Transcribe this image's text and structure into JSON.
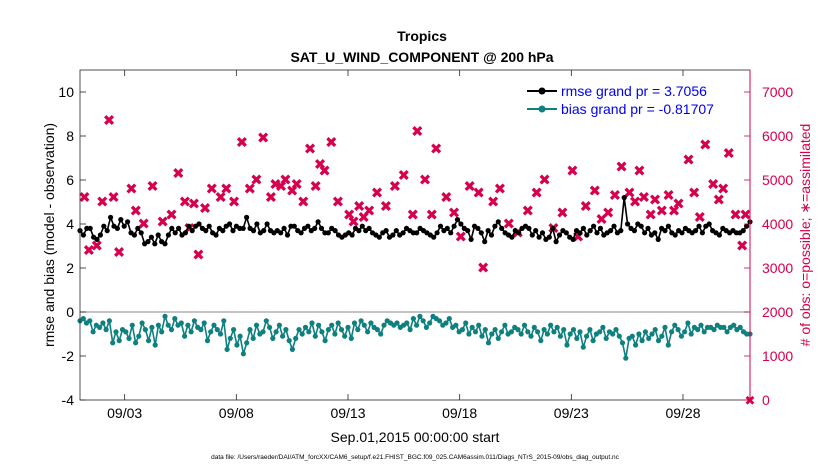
{
  "chart_data": {
    "type": "line",
    "title": "Tropics",
    "subtitle": "SAT_U_WIND_COMPONENT @ 200 hPa",
    "xlabel": "Sep.01,2015 00:00:00 start",
    "ylabel": "rmse and bias (model - observation)",
    "y2label": "# of obs: o=possible; ∗=assimilated",
    "footnote": "data file: /Users/raeder/DAI/ATM_forcXX/CAM6_setup/f.e21.FHIST_BGC.f09_025.CAM6assim.011/Diags_NTrS_2015-09/obs_diag_output.nc",
    "xlim": [
      1,
      31
    ],
    "xticks": [
      3,
      8,
      13,
      18,
      23,
      28
    ],
    "xtick_labels": [
      "09/03",
      "09/08",
      "09/13",
      "09/18",
      "09/23",
      "09/28"
    ],
    "ylim": [
      -4,
      11
    ],
    "yticks": [
      -4,
      -2,
      0,
      2,
      4,
      6,
      8,
      10
    ],
    "ytick_labels": [
      "-4",
      "-2",
      "0",
      "2",
      "4",
      "6",
      "8",
      "10"
    ],
    "y2lim": [
      0,
      7500
    ],
    "y2ticks": [
      0,
      1000,
      2000,
      3000,
      4000,
      5000,
      6000,
      7000
    ],
    "y2tick_labels": [
      "0",
      "1000",
      "2000",
      "3000",
      "4000",
      "5000",
      "6000",
      "7000"
    ],
    "legend_location": "top-right",
    "colors": {
      "rmse": "#000000",
      "bias": "#0e8080",
      "obs": "#d6004e",
      "axis_right": "#d6004e",
      "legend_text": "#0000ee",
      "zero_line": "#a0a0a0"
    },
    "series": [
      {
        "name": "rmse grand pr = 3.7056",
        "axis": "left",
        "values": [
          3.7,
          3.5,
          3.8,
          3.8,
          3.4,
          3.3,
          3.5,
          3.9,
          3.7,
          4.3,
          3.9,
          3.8,
          4.2,
          3.9,
          4.1,
          3.6,
          3.5,
          3.8,
          3.6,
          3.1,
          3.2,
          3.4,
          3.1,
          3.5,
          3.2,
          3.1,
          3.5,
          3.8,
          3.6,
          3.8,
          3.5,
          3.6,
          3.9,
          3.7,
          3.9,
          4.0,
          3.8,
          3.7,
          3.9,
          3.6,
          3.5,
          3.8,
          3.7,
          3.9,
          4.0,
          3.7,
          3.9,
          3.8,
          3.8,
          4.3,
          3.8,
          3.7,
          4.0,
          3.6,
          3.7,
          4.0,
          3.7,
          3.6,
          3.7,
          3.6,
          3.8,
          3.5,
          3.9,
          3.9,
          3.7,
          3.6,
          3.8,
          3.9,
          3.7,
          3.8,
          4.1,
          3.8,
          3.6,
          3.6,
          3.8,
          3.7,
          3.5,
          3.4,
          3.5,
          3.6,
          3.5,
          3.8,
          3.7,
          3.9,
          3.7,
          3.8,
          3.6,
          3.5,
          3.4,
          3.6,
          3.7,
          3.4,
          3.5,
          3.7,
          3.5,
          3.6,
          3.8,
          3.7,
          3.6,
          3.6,
          3.8,
          3.7,
          3.6,
          3.5,
          3.4,
          3.6,
          3.9,
          3.7,
          3.8,
          3.6,
          3.9,
          4.2,
          4.0,
          3.8,
          3.7,
          3.3,
          3.9,
          3.8,
          3.6,
          3.2,
          3.7,
          3.5,
          3.9,
          4.1,
          3.8,
          3.6,
          3.5,
          3.4,
          3.7,
          3.6,
          3.8,
          3.9,
          3.8,
          3.5,
          3.7,
          3.4,
          3.6,
          3.3,
          3.4,
          3.8,
          3.2,
          3.5,
          3.7,
          3.6,
          3.4,
          3.3,
          3.7,
          3.6,
          3.8,
          3.5,
          3.7,
          3.9,
          3.6,
          3.8,
          3.5,
          3.6,
          3.7,
          3.9,
          3.6,
          3.7,
          5.2,
          4.0,
          3.8,
          3.7,
          4.0,
          3.9,
          3.6,
          3.8,
          3.5,
          3.6,
          3.3,
          3.8,
          3.7,
          3.9,
          3.6,
          3.5,
          3.7,
          3.6,
          3.8,
          3.7,
          3.6,
          3.7,
          3.9,
          3.6,
          3.9,
          4.0,
          3.7,
          3.6,
          3.5,
          3.8,
          3.7,
          3.6,
          3.7,
          3.6,
          3.6,
          3.7,
          3.9,
          4.1
        ]
      },
      {
        "name": "bias grand pr = -0.81707",
        "axis": "left",
        "values": [
          -0.4,
          -0.3,
          -0.5,
          -0.4,
          -0.9,
          -0.6,
          -0.7,
          -0.5,
          -0.8,
          -0.4,
          -1.4,
          -0.9,
          -1.3,
          -0.8,
          -0.9,
          -1.2,
          -0.6,
          -1.4,
          -1.1,
          -0.5,
          -0.8,
          -1.3,
          -0.7,
          -1.5,
          -0.6,
          -0.9,
          -0.2,
          -0.6,
          -0.8,
          -0.3,
          -0.6,
          -0.5,
          -1.1,
          -0.6,
          -0.9,
          -0.4,
          -0.7,
          -0.8,
          -0.5,
          -1.3,
          -0.9,
          -0.6,
          -0.8,
          -1.0,
          -0.4,
          -1.7,
          -1.2,
          -0.8,
          -1.5,
          -1.1,
          -1.9,
          -1.4,
          -0.8,
          -1.2,
          -0.6,
          -1.0,
          -0.9,
          -0.4,
          -0.7,
          -1.2,
          -0.9,
          -0.6,
          -1.1,
          -0.8,
          -1.3,
          -1.7,
          -1.2,
          -0.8,
          -1.0,
          -0.7,
          -0.9,
          -0.5,
          -1.1,
          -0.6,
          -0.9,
          -1.3,
          -0.8,
          -0.6,
          -1.0,
          -0.5,
          -0.8,
          -1.1,
          -0.7,
          -1.2,
          -0.5,
          -0.8,
          -0.4,
          -0.6,
          -0.9,
          -0.5,
          -0.7,
          -0.8,
          -1.0,
          -0.6,
          -0.4,
          -0.5,
          -0.6,
          -0.5,
          -0.7,
          -0.6,
          -0.5,
          -0.8,
          -0.3,
          -0.6,
          -0.2,
          -0.4,
          -0.7,
          -0.5,
          -0.2,
          -0.3,
          -0.4,
          -0.6,
          -0.5,
          -0.3,
          -0.7,
          -0.6,
          -0.9,
          -0.8,
          -0.5,
          -1.0,
          -0.7,
          -0.9,
          -0.6,
          -1.1,
          -0.8,
          -1.4,
          -1.0,
          -0.8,
          -1.2,
          -0.9,
          -0.6,
          -1.0,
          -0.9,
          -0.7,
          -0.8,
          -1.0,
          -0.6,
          -0.9,
          -1.1,
          -0.7,
          -0.9,
          -1.3,
          -0.8,
          -1.0,
          -0.6,
          -0.9,
          -0.7,
          -1.1,
          -0.8,
          -1.5,
          -1.0,
          -0.8,
          -1.2,
          -0.9,
          -1.6,
          -1.1,
          -0.8,
          -1.3,
          -1.0,
          -0.9,
          -0.7,
          -1.2,
          -0.9,
          -1.0,
          -0.8,
          -1.1,
          -1.4,
          -2.1,
          -1.2,
          -1.1,
          -1.5,
          -1.0,
          -1.3,
          -0.9,
          -1.2,
          -1.0,
          -0.8,
          -1.3,
          -1.1,
          -0.7,
          -1.5,
          -0.9,
          -0.6,
          -0.8,
          -1.1,
          -0.9,
          -0.5,
          -1.0,
          -0.7,
          -0.8,
          -0.6,
          -0.9,
          -0.7,
          -0.7,
          -0.8,
          -0.6,
          -0.7,
          -0.7,
          -0.9,
          -0.7,
          -0.6,
          -0.8,
          -0.7,
          -0.9,
          -1.0,
          -1.0
        ]
      },
      {
        "name": "# of obs assimilated",
        "axis": "right",
        "marker": "∗",
        "points": [
          [
            1.2,
            4600
          ],
          [
            1.4,
            3400
          ],
          [
            1.75,
            3500
          ],
          [
            2.0,
            4500
          ],
          [
            2.3,
            6350
          ],
          [
            2.5,
            4600
          ],
          [
            2.75,
            3350
          ],
          [
            3.3,
            4800
          ],
          [
            3.5,
            4300
          ],
          [
            3.85,
            4000
          ],
          [
            4.25,
            4850
          ],
          [
            4.7,
            4050
          ],
          [
            5.1,
            4200
          ],
          [
            5.4,
            5150
          ],
          [
            5.7,
            4500
          ],
          [
            5.9,
            3900
          ],
          [
            6.1,
            4450
          ],
          [
            6.3,
            3300
          ],
          [
            6.6,
            4350
          ],
          [
            6.9,
            4800
          ],
          [
            7.3,
            4600
          ],
          [
            7.55,
            4800
          ],
          [
            7.9,
            4500
          ],
          [
            8.25,
            5850
          ],
          [
            8.6,
            4800
          ],
          [
            8.9,
            5000
          ],
          [
            9.2,
            5950
          ],
          [
            9.55,
            4600
          ],
          [
            9.75,
            4900
          ],
          [
            10.0,
            4850
          ],
          [
            10.2,
            5000
          ],
          [
            10.5,
            4750
          ],
          [
            10.7,
            4900
          ],
          [
            11.0,
            4500
          ],
          [
            11.3,
            5700
          ],
          [
            11.55,
            4850
          ],
          [
            11.75,
            5350
          ],
          [
            11.95,
            5200
          ],
          [
            12.25,
            5850
          ],
          [
            12.55,
            4500
          ],
          [
            13.05,
            4200
          ],
          [
            13.25,
            4050
          ],
          [
            13.5,
            4400
          ],
          [
            13.7,
            4150
          ],
          [
            13.95,
            4300
          ],
          [
            14.3,
            4700
          ],
          [
            14.7,
            4400
          ],
          [
            15.1,
            4850
          ],
          [
            15.5,
            5100
          ],
          [
            15.9,
            4200
          ],
          [
            16.1,
            6100
          ],
          [
            16.45,
            5000
          ],
          [
            16.75,
            4200
          ],
          [
            16.95,
            5700
          ],
          [
            17.4,
            4600
          ],
          [
            17.75,
            4250
          ],
          [
            18.05,
            3700
          ],
          [
            18.45,
            4850
          ],
          [
            18.85,
            4700
          ],
          [
            19.05,
            3000
          ],
          [
            19.5,
            4500
          ],
          [
            19.8,
            4800
          ],
          [
            20.2,
            4000
          ],
          [
            20.6,
            3800
          ],
          [
            21.05,
            4300
          ],
          [
            21.45,
            4700
          ],
          [
            21.8,
            5000
          ],
          [
            22.2,
            3900
          ],
          [
            22.6,
            4250
          ],
          [
            23.05,
            5200
          ],
          [
            23.3,
            3700
          ],
          [
            23.65,
            4400
          ],
          [
            24.05,
            4750
          ],
          [
            24.35,
            4100
          ],
          [
            24.65,
            4250
          ],
          [
            24.95,
            4650
          ],
          [
            25.25,
            5300
          ],
          [
            25.6,
            4700
          ],
          [
            25.85,
            4500
          ],
          [
            26.05,
            5200
          ],
          [
            26.25,
            4600
          ],
          [
            26.55,
            4200
          ],
          [
            26.75,
            4550
          ],
          [
            27.05,
            4300
          ],
          [
            27.35,
            4650
          ],
          [
            27.6,
            4300
          ],
          [
            27.8,
            4450
          ],
          [
            28.25,
            5450
          ],
          [
            28.5,
            4700
          ],
          [
            28.75,
            4150
          ],
          [
            29.0,
            5800
          ],
          [
            29.35,
            4900
          ],
          [
            29.6,
            4550
          ],
          [
            29.8,
            4800
          ],
          [
            30.05,
            5600
          ],
          [
            30.35,
            4200
          ],
          [
            30.65,
            3500
          ],
          [
            30.8,
            4200
          ]
        ]
      },
      {
        "name": "# of obs possible",
        "axis": "right",
        "marker": "o",
        "points": []
      }
    ]
  }
}
